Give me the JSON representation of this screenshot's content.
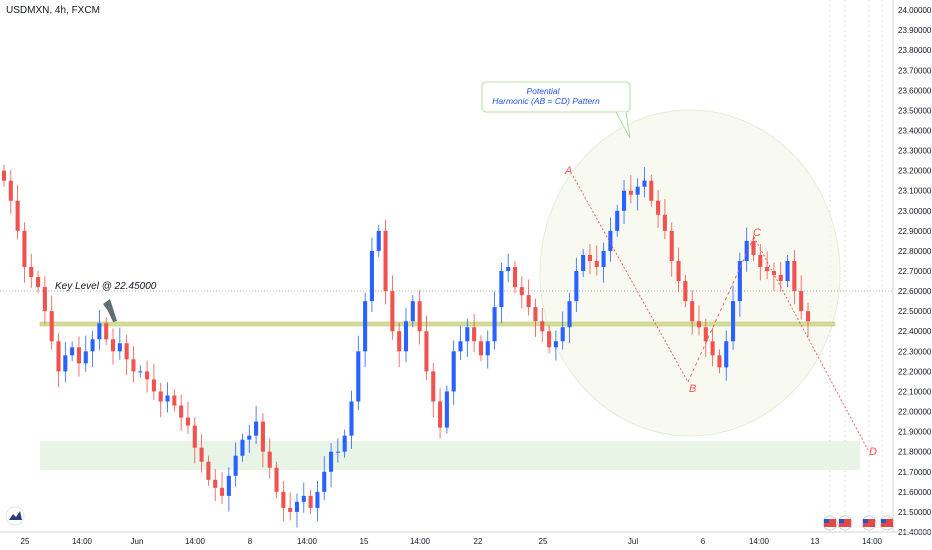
{
  "chart_title": "USDMXN, 4h, FXCM",
  "key_level_label": "Key Level @ 22.45000",
  "pattern_label_line1": "Potential",
  "pattern_label_line2": "Harmonic (AB = CD) Pattern",
  "points": {
    "A": "A",
    "B": "B",
    "C": "C",
    "D": "D"
  },
  "colors": {
    "up": "#2962ff",
    "down": "#ef5350",
    "key_band": "#d4db9c",
    "demand_zone": "#e4f2e0",
    "pattern": "#f05252"
  },
  "chart_data": {
    "type": "candlestick",
    "title": "USDMXN, 4h, FXCM",
    "ylim": [
      21.4,
      24.05
    ],
    "y_ticks": [
      "24.00000",
      "23.90000",
      "23.80000",
      "23.70000",
      "23.60000",
      "23.50000",
      "23.40000",
      "23.30000",
      "23.20000",
      "23.10000",
      "23.00000",
      "22.90000",
      "22.80000",
      "22.70000",
      "22.60000",
      "22.50000",
      "22.40000",
      "22.30000",
      "22.20000",
      "22.10000",
      "22.00000",
      "21.90000",
      "21.80000",
      "21.70000",
      "21.60000",
      "21.50000",
      "21.40000"
    ],
    "x_ticks": [
      "25",
      "14:00",
      "Jun",
      "14:00",
      "8",
      "14:00",
      "15",
      "14:00",
      "22",
      "25",
      "Jul",
      "6",
      "14:00",
      "13",
      "14:00"
    ],
    "key_level": 22.45,
    "demand_zone": [
      21.7,
      21.85
    ],
    "pattern_points": {
      "A": 23.26,
      "B": 22.16,
      "C": 22.88,
      "D": 21.82
    },
    "close_values": [
      23.15,
      23.05,
      22.9,
      22.72,
      22.67,
      22.62,
      22.5,
      22.35,
      22.2,
      22.28,
      22.32,
      22.24,
      22.3,
      22.36,
      22.44,
      22.36,
      22.3,
      22.34,
      22.26,
      22.2,
      22.2,
      22.16,
      22.1,
      22.05,
      22.08,
      22.03,
      21.97,
      21.93,
      21.82,
      21.75,
      21.66,
      21.62,
      21.58,
      21.68,
      21.78,
      21.86,
      21.88,
      21.95,
      21.8,
      21.72,
      21.6,
      21.52,
      21.5,
      21.55,
      21.58,
      21.52,
      21.6,
      21.7,
      21.8,
      21.8,
      21.88,
      22.05,
      22.3,
      22.55,
      22.8,
      22.9,
      22.6,
      22.4,
      22.3,
      22.45,
      22.55,
      22.4,
      22.2,
      22.05,
      21.92,
      22.1,
      22.3,
      22.35,
      22.42,
      22.35,
      22.28,
      22.35,
      22.52,
      22.7,
      22.72,
      22.62,
      22.58,
      22.52,
      22.45,
      22.4,
      22.32,
      22.35,
      22.42,
      22.55,
      22.7,
      22.78,
      22.75,
      22.72,
      22.8,
      22.9,
      23.0,
      23.1,
      23.08,
      23.12,
      23.15,
      23.05,
      22.98,
      22.9,
      22.75,
      22.65,
      22.55,
      22.45,
      22.42,
      22.35,
      22.28,
      22.22,
      22.35,
      22.55,
      22.75,
      22.85,
      22.78,
      22.72,
      22.7,
      22.68,
      22.65,
      22.75,
      22.6,
      22.5,
      22.45
    ]
  }
}
